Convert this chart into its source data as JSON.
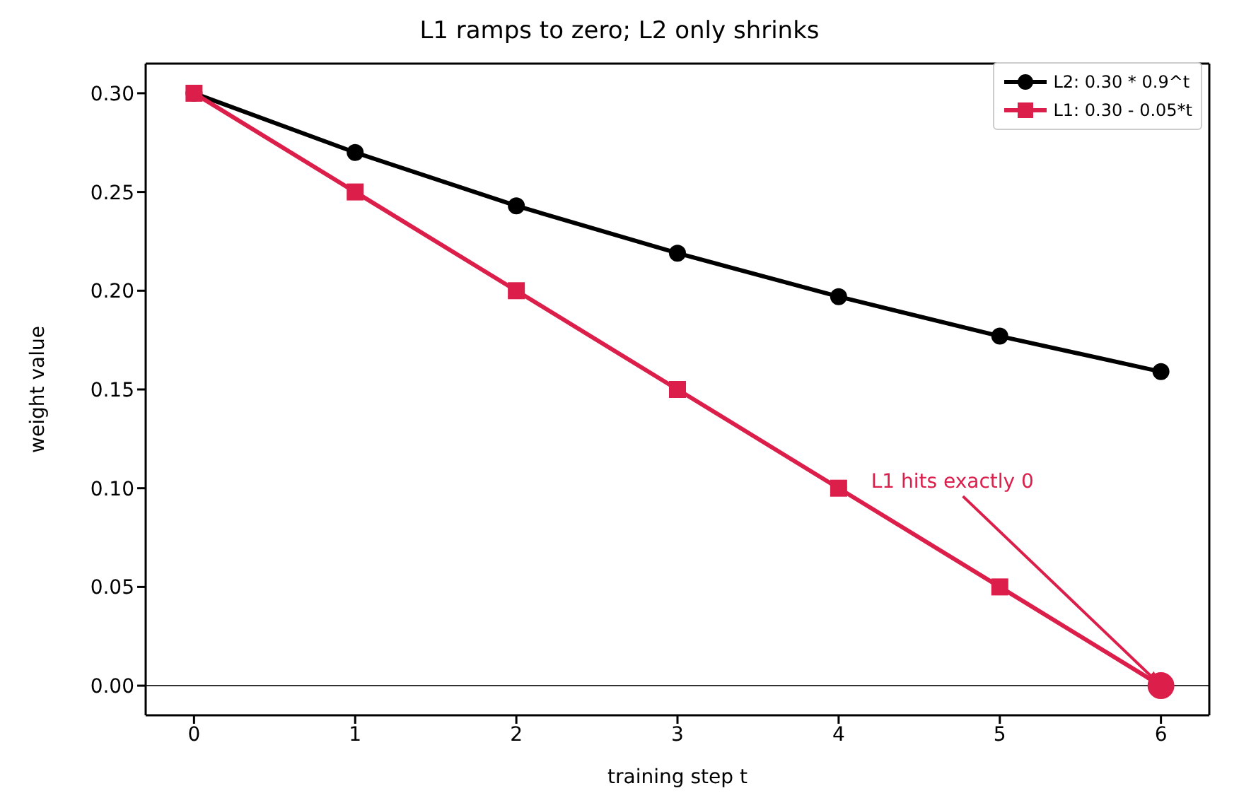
{
  "chart_data": {
    "type": "line",
    "title": "L1 ramps to zero; L2 only shrinks",
    "xlabel": "training step t",
    "ylabel": "weight value",
    "x": [
      0,
      1,
      2,
      3,
      4,
      5,
      6
    ],
    "series": [
      {
        "name": "L2: 0.30 * 0.9^t",
        "color": "#000000",
        "marker": "circle",
        "values": [
          0.3,
          0.27,
          0.243,
          0.219,
          0.197,
          0.177,
          0.159
        ]
      },
      {
        "name": "L1: 0.30 - 0.05*t",
        "color": "#dc1e4b",
        "marker": "square",
        "values": [
          0.3,
          0.25,
          0.2,
          0.15,
          0.1,
          0.05,
          0
        ]
      },
      {
        "type": "scatter",
        "color": "#dc1e4b",
        "marker": "circle",
        "x": [
          6
        ],
        "values": [
          0
        ]
      }
    ],
    "annotations": [
      {
        "text": "L1 hits exactly 0",
        "x": 6,
        "y": 0
      }
    ],
    "ref_lines": [
      {
        "axis": "y",
        "value": 0,
        "color": "#333333"
      }
    ],
    "xlim": [
      -0.3,
      6.3
    ],
    "xticks": [
      0,
      1,
      2,
      3,
      4,
      5,
      6
    ],
    "ylim": [
      -0.015,
      0.315
    ],
    "yticks": [
      {
        "value": 0,
        "label": "0.00"
      },
      0.05,
      {
        "value": 0.1,
        "label": "0.10"
      },
      0.15,
      {
        "value": 0.2,
        "label": "0.20"
      },
      0.25,
      {
        "value": 0.3,
        "label": "0.30"
      }
    ],
    "grid": false,
    "legend": "top right",
    "line_style": "solid"
  }
}
